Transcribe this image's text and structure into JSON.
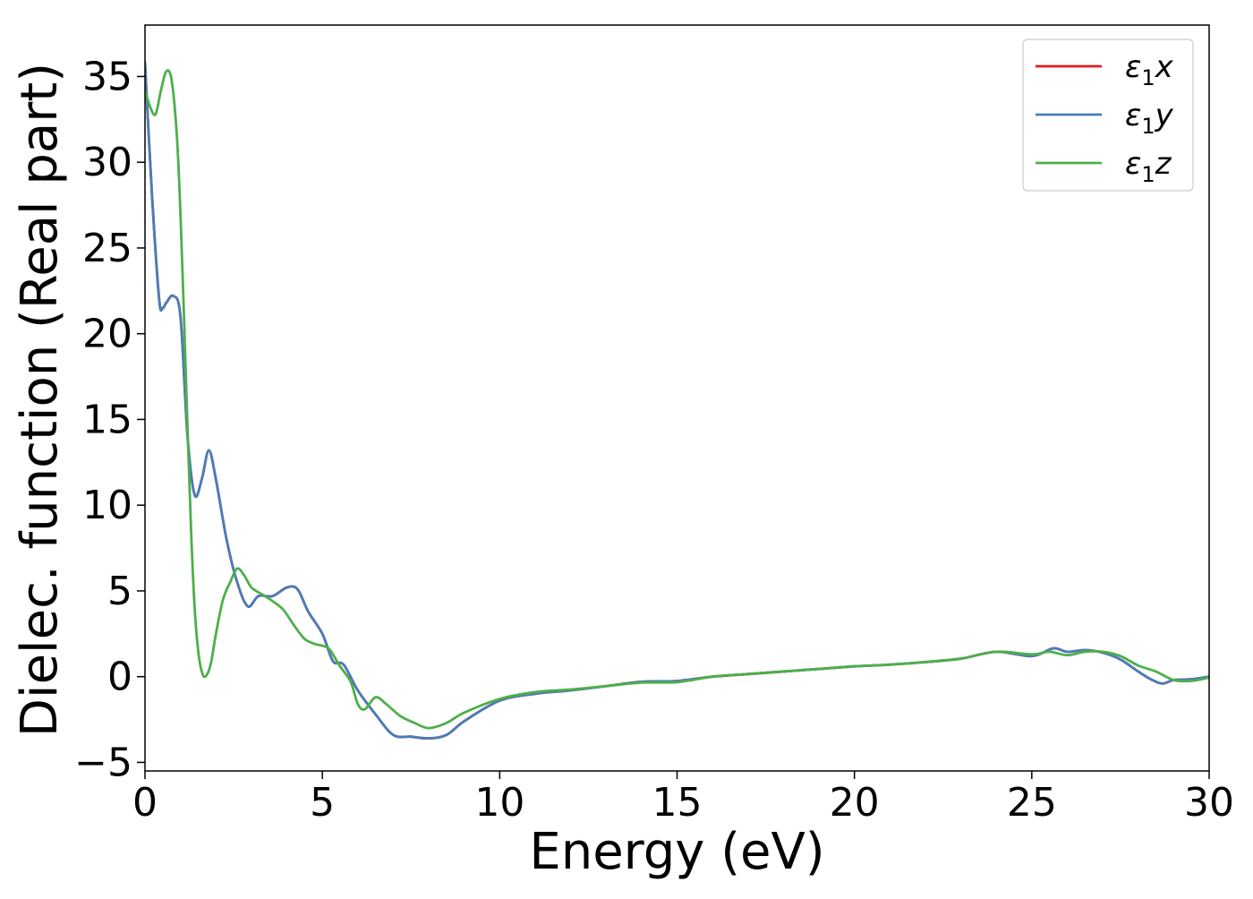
{
  "chart_data": {
    "type": "line",
    "title": "",
    "xlabel": "Energy (eV)",
    "ylabel": "Dielec. function (Real part)",
    "xlim": [
      0,
      30
    ],
    "ylim": [
      -5.5,
      38
    ],
    "x_ticks": [
      0,
      5,
      10,
      15,
      20,
      25,
      30
    ],
    "x_tick_labels": [
      "0",
      "5",
      "10",
      "15",
      "20",
      "25",
      "30"
    ],
    "y_ticks": [
      -5,
      0,
      5,
      10,
      15,
      20,
      25,
      30,
      35
    ],
    "y_tick_labels": [
      "−5",
      "0",
      "5",
      "10",
      "15",
      "20",
      "25",
      "30",
      "35"
    ],
    "grid": false,
    "legend_position": "top-right",
    "series": [
      {
        "name": "ε₁x",
        "legend_base": "ε",
        "legend_sub": "1",
        "legend_var": "x",
        "color": "#e41a1c",
        "x": [
          0,
          0.2,
          0.4,
          0.5,
          0.6,
          0.8,
          1.0,
          1.2,
          1.4,
          1.6,
          1.8,
          2.0,
          2.3,
          2.6,
          2.9,
          3.2,
          3.6,
          4.0,
          4.3,
          4.6,
          5.0,
          5.3,
          5.6,
          6.0,
          6.5,
          7.0,
          7.5,
          8.0,
          8.5,
          9.0,
          10,
          11,
          12,
          13,
          14,
          15,
          16,
          17,
          18,
          19,
          20,
          21,
          22,
          23,
          24,
          25,
          25.6,
          26,
          26.5,
          27,
          27.5,
          28,
          28.4,
          28.7,
          29,
          29.5,
          30
        ],
        "y": [
          35.8,
          28,
          22,
          21.5,
          21.8,
          22.2,
          21,
          14,
          10.6,
          11.5,
          13.2,
          11.5,
          8,
          5.5,
          4.1,
          4.7,
          4.7,
          5.2,
          5.1,
          3.8,
          2.5,
          0.9,
          0.7,
          -0.8,
          -2.2,
          -3.4,
          -3.5,
          -3.6,
          -3.4,
          -2.6,
          -1.4,
          -1.0,
          -0.8,
          -0.55,
          -0.3,
          -0.25,
          0.0,
          0.15,
          0.3,
          0.45,
          0.6,
          0.7,
          0.85,
          1.05,
          1.45,
          1.2,
          1.65,
          1.45,
          1.55,
          1.4,
          1.0,
          0.3,
          -0.2,
          -0.4,
          -0.2,
          -0.15,
          0.0
        ]
      },
      {
        "name": "ε₁y",
        "legend_base": "ε",
        "legend_sub": "1",
        "legend_var": "y",
        "color": "#4a7db9",
        "x": [
          0,
          0.2,
          0.4,
          0.5,
          0.6,
          0.8,
          1.0,
          1.2,
          1.4,
          1.6,
          1.8,
          2.0,
          2.3,
          2.6,
          2.9,
          3.2,
          3.6,
          4.0,
          4.3,
          4.6,
          5.0,
          5.3,
          5.6,
          6.0,
          6.5,
          7.0,
          7.5,
          8.0,
          8.5,
          9.0,
          10,
          11,
          12,
          13,
          14,
          15,
          16,
          17,
          18,
          19,
          20,
          21,
          22,
          23,
          24,
          25,
          25.6,
          26,
          26.5,
          27,
          27.5,
          28,
          28.4,
          28.7,
          29,
          29.5,
          30
        ],
        "y": [
          35.8,
          28,
          22,
          21.5,
          21.8,
          22.2,
          21,
          14,
          10.6,
          11.5,
          13.2,
          11.5,
          8,
          5.5,
          4.1,
          4.7,
          4.7,
          5.2,
          5.1,
          3.8,
          2.5,
          0.9,
          0.7,
          -0.8,
          -2.2,
          -3.4,
          -3.5,
          -3.6,
          -3.4,
          -2.6,
          -1.4,
          -1.0,
          -0.8,
          -0.55,
          -0.3,
          -0.25,
          0.0,
          0.15,
          0.3,
          0.45,
          0.6,
          0.7,
          0.85,
          1.05,
          1.45,
          1.2,
          1.65,
          1.45,
          1.55,
          1.4,
          1.0,
          0.3,
          -0.2,
          -0.4,
          -0.2,
          -0.15,
          0.0
        ]
      },
      {
        "name": "ε₁z",
        "legend_base": "ε",
        "legend_sub": "1",
        "legend_var": "z",
        "color": "#4daf4a",
        "x": [
          0,
          0.15,
          0.3,
          0.45,
          0.6,
          0.75,
          0.9,
          1.0,
          1.1,
          1.2,
          1.3,
          1.4,
          1.5,
          1.6,
          1.7,
          1.85,
          2.0,
          2.2,
          2.4,
          2.6,
          2.8,
          3.0,
          3.3,
          3.6,
          3.9,
          4.2,
          4.5,
          4.8,
          5.0,
          5.2,
          5.5,
          5.8,
          6.0,
          6.2,
          6.5,
          6.8,
          7.2,
          7.6,
          8.0,
          8.5,
          9.0,
          10,
          11,
          12,
          13,
          14,
          15,
          16,
          17,
          18,
          19,
          20,
          21,
          22,
          23,
          24,
          25,
          25.5,
          26,
          26.5,
          27,
          27.5,
          28,
          28.5,
          29,
          29.5,
          30
        ],
        "y": [
          34.2,
          33.2,
          32.8,
          34.2,
          35.3,
          34.8,
          31.5,
          27,
          21,
          14.5,
          8.5,
          4,
          1.5,
          0.3,
          0.0,
          0.7,
          2.5,
          4.5,
          5.5,
          6.3,
          5.9,
          5.2,
          4.8,
          4.4,
          3.9,
          3.0,
          2.2,
          1.9,
          1.8,
          1.6,
          0.6,
          -0.3,
          -1.6,
          -1.9,
          -1.2,
          -1.6,
          -2.3,
          -2.7,
          -3.0,
          -2.7,
          -2.1,
          -1.3,
          -0.9,
          -0.75,
          -0.55,
          -0.35,
          -0.32,
          0.0,
          0.15,
          0.3,
          0.45,
          0.6,
          0.7,
          0.85,
          1.05,
          1.45,
          1.3,
          1.45,
          1.25,
          1.45,
          1.45,
          1.2,
          0.65,
          0.3,
          -0.2,
          -0.25,
          -0.05
        ]
      }
    ]
  }
}
